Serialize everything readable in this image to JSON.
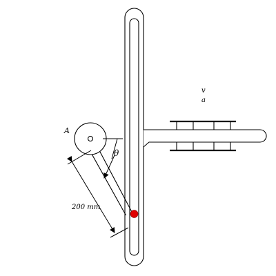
{
  "labels": {
    "pivot": "A",
    "angle": "θ",
    "length": "200 mm",
    "velocity": "v",
    "acceleration": "a"
  },
  "colors": {
    "stroke": "#000000",
    "pin": "#e00000",
    "background": "#ffffff"
  }
}
